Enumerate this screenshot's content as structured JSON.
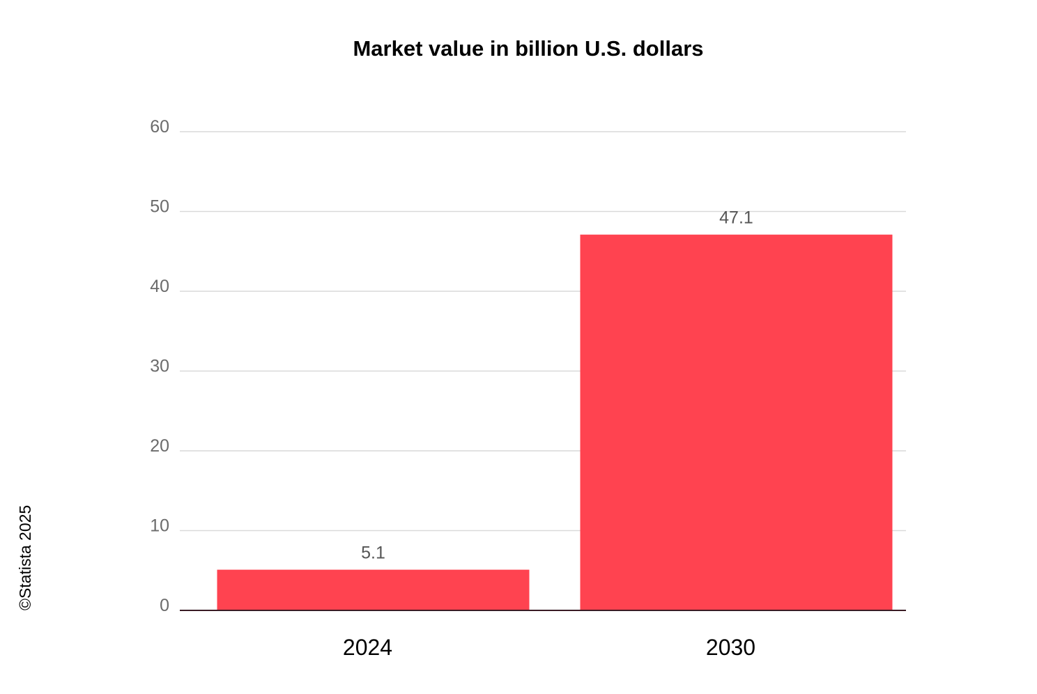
{
  "chart_data": {
    "type": "bar",
    "title": "Market value in billion U.S. dollars",
    "categories": [
      "2024",
      "2030"
    ],
    "values": [
      5.1,
      47.1
    ],
    "data_labels": [
      "5.1",
      "47.1"
    ],
    "xlabel": "",
    "ylabel": "",
    "ylim": [
      0,
      60
    ],
    "yticks": [
      0,
      10,
      20,
      30,
      40,
      50,
      60
    ],
    "ytick_labels": [
      "0",
      "10",
      "20",
      "30",
      "40",
      "50",
      "60"
    ],
    "grid": true,
    "legend": "none",
    "bar_color": "#ff4350"
  },
  "copyright": "©Statista 2025"
}
